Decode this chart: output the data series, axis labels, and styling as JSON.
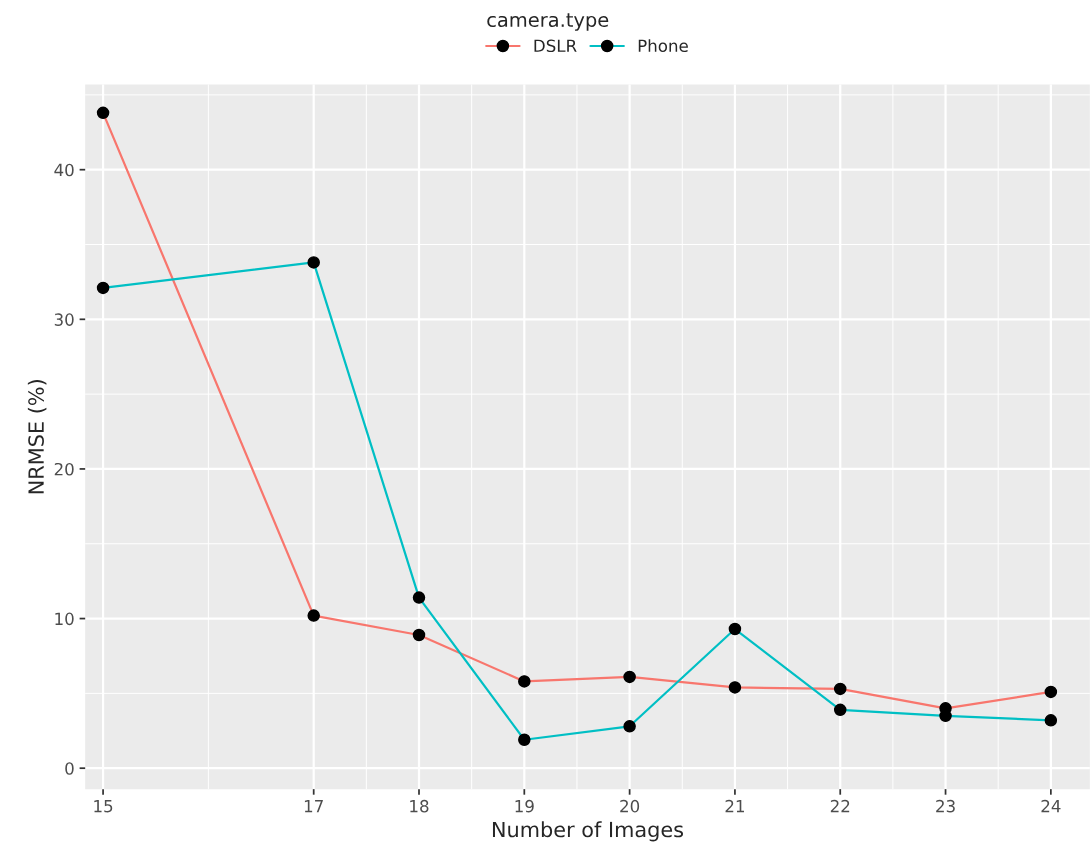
{
  "chart_data": {
    "type": "line",
    "xlabel": "Number of Images",
    "ylabel": "NRMSE (%)",
    "legend_title": "camera.type",
    "x": [
      15,
      17,
      18,
      19,
      20,
      21,
      22,
      23,
      24
    ],
    "series": [
      {
        "name": "DSLR",
        "color": "#f8766d",
        "values": [
          43.8,
          10.2,
          8.9,
          5.8,
          6.1,
          5.4,
          5.3,
          4.0,
          5.1
        ]
      },
      {
        "name": "Phone",
        "color": "#00bfc4",
        "values": [
          32.1,
          33.8,
          11.4,
          1.9,
          2.8,
          9.3,
          3.9,
          3.5,
          3.2
        ]
      }
    ],
    "xlim": [
      14.83,
      24.37
    ],
    "xticks": [
      15,
      17,
      18,
      19,
      20,
      21,
      22,
      23,
      24
    ],
    "ylim": [
      -1.4,
      45.7
    ],
    "yticks": [
      0,
      10,
      20,
      30,
      40
    ],
    "grid": true,
    "legend": "top",
    "marker": "circle",
    "line_style": "solid"
  }
}
